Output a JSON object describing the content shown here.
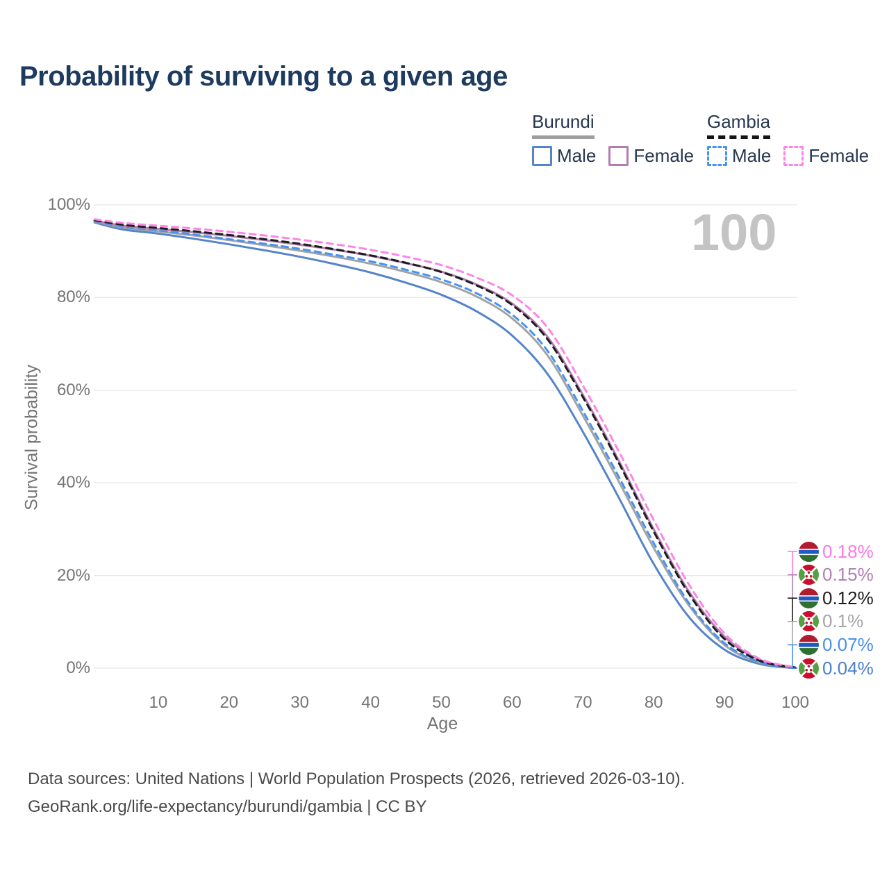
{
  "title": "Probability of surviving to a given age",
  "watermark": "100",
  "legend": {
    "groups": [
      {
        "name": "Burundi",
        "line_style": "solid",
        "underline_color": "#9e9e9e",
        "items": [
          {
            "label": "Male",
            "color": "#5584c8",
            "dashed": false
          },
          {
            "label": "Female",
            "color": "#b27daf",
            "dashed": false
          }
        ]
      },
      {
        "name": "Gambia",
        "line_style": "dashed",
        "underline_color": "#141414",
        "items": [
          {
            "label": "Male",
            "color": "#4593f2",
            "dashed": true
          },
          {
            "label": "Female",
            "color": "#fd85e6",
            "dashed": true
          }
        ]
      }
    ]
  },
  "chart_data": {
    "type": "line",
    "title": "Probability of surviving to a given age",
    "xlabel": "Age",
    "ylabel": "Survival probability",
    "xlim": [
      0,
      100
    ],
    "ylim": [
      0,
      100
    ],
    "grid": "horizontal",
    "legend_position": "top-right",
    "x_ticks": [
      10,
      20,
      30,
      40,
      50,
      60,
      70,
      80,
      90,
      100
    ],
    "x_tick_labels": [
      "10",
      "20",
      "30",
      "40",
      "50",
      "60",
      "70",
      "80",
      "90",
      "100"
    ],
    "y_ticks": [
      0,
      20,
      40,
      60,
      80,
      100
    ],
    "y_tick_labels": [
      "0%",
      "20%",
      "40%",
      "60%",
      "80%",
      "100%"
    ],
    "x": [
      1,
      5,
      10,
      15,
      20,
      25,
      30,
      35,
      40,
      45,
      50,
      55,
      60,
      65,
      70,
      75,
      80,
      85,
      90,
      95,
      100
    ],
    "series": [
      {
        "name": "Burundi Male",
        "country": "Burundi",
        "sex": "Male",
        "color": "#5584c8",
        "dash": false,
        "values": [
          96.2,
          94.7,
          93.8,
          92.7,
          91.5,
          90.2,
          88.8,
          87.2,
          85.4,
          83.2,
          80.6,
          77.0,
          71.8,
          63.5,
          51.0,
          37.0,
          22.5,
          11.0,
          4.0,
          0.9,
          0.04
        ]
      },
      {
        "name": "Burundi (both sexes)",
        "country": "Burundi",
        "sex": "All",
        "color": "#a3a3a3",
        "dash": false,
        "values": [
          96.4,
          95.1,
          94.3,
          93.4,
          92.4,
          91.3,
          90.1,
          88.8,
          87.3,
          85.5,
          83.3,
          80.2,
          75.5,
          67.5,
          54.5,
          40.5,
          26.0,
          13.5,
          5.0,
          1.2,
          0.1
        ]
      },
      {
        "name": "Gambia Male",
        "country": "Gambia",
        "sex": "Male",
        "color": "#4593f2",
        "dash": true,
        "values": [
          96.5,
          95.3,
          94.5,
          93.6,
          92.6,
          91.6,
          90.5,
          89.2,
          87.8,
          86.0,
          83.9,
          80.9,
          76.3,
          68.5,
          55.5,
          41.5,
          27.0,
          14.0,
          5.4,
          1.3,
          0.07
        ]
      },
      {
        "name": "Burundi Female",
        "country": "Burundi",
        "sex": "Female",
        "color": "#b27daf",
        "dash": false,
        "values": [
          96.6,
          95.5,
          94.8,
          94.1,
          93.3,
          92.4,
          91.4,
          90.3,
          89.0,
          87.4,
          85.6,
          82.8,
          78.7,
          71.5,
          59.0,
          45.0,
          30.0,
          16.5,
          6.8,
          1.8,
          0.15
        ]
      },
      {
        "name": "Gambia (both sexes)",
        "country": "Gambia",
        "sex": "All",
        "color": "#1d1d1d",
        "dash": true,
        "values": [
          96.7,
          95.7,
          95.0,
          94.3,
          93.5,
          92.6,
          91.6,
          90.4,
          89.1,
          87.5,
          85.5,
          82.6,
          78.4,
          71.0,
          58.5,
          44.5,
          29.5,
          16.0,
          6.3,
          1.6,
          0.12
        ]
      },
      {
        "name": "Gambia Female",
        "country": "Gambia",
        "sex": "Female",
        "color": "#fd85e6",
        "dash": true,
        "values": [
          96.9,
          96.1,
          95.5,
          94.9,
          94.2,
          93.4,
          92.5,
          91.5,
          90.3,
          88.8,
          87.0,
          84.3,
          80.5,
          73.5,
          61.0,
          47.0,
          32.0,
          18.0,
          7.5,
          2.0,
          0.18
        ]
      }
    ],
    "end_labels": [
      {
        "text": "0.18%",
        "color": "#ff7ae1",
        "flag": "gambia",
        "series": "Gambia Female"
      },
      {
        "text": "0.15%",
        "color": "#b07fb3",
        "flag": "burundi",
        "series": "Burundi Female"
      },
      {
        "text": "0.12%",
        "color": "#1d1d1d",
        "flag": "gambia",
        "series": "Gambia (both sexes)"
      },
      {
        "text": "0.1%",
        "color": "#a6a6a6",
        "flag": "burundi",
        "series": "Burundi (both sexes)"
      },
      {
        "text": "0.07%",
        "color": "#4a90e8",
        "flag": "gambia",
        "series": "Gambia Male"
      },
      {
        "text": "0.04%",
        "color": "#4a80cf",
        "flag": "burundi",
        "series": "Burundi Male"
      }
    ]
  },
  "footer": {
    "line1": "Data sources: United Nations | World Population Prospects (2026, retrieved 2026-03-10).",
    "line2": "GeoRank.org/life-expectancy/burundi/gambia | CC BY"
  }
}
